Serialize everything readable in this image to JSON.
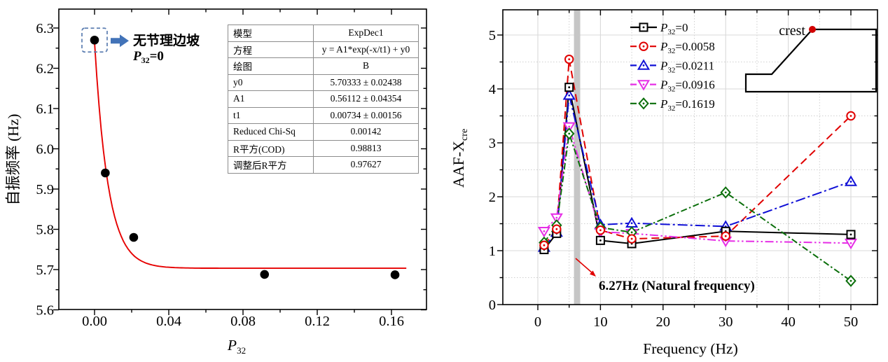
{
  "chart_data": [
    {
      "type": "scatter",
      "title": "",
      "ylabel": "自振频率 (Hz)",
      "xlabel": {
        "base": "P",
        "sub": "32"
      },
      "xlim": [
        -0.0192,
        0.1789
      ],
      "ylim": [
        5.6,
        6.347
      ],
      "x_major_ticks": [
        0.0,
        0.04,
        0.08,
        0.12,
        0.16
      ],
      "x_minor_ticks": [
        0.02,
        0.06,
        0.1,
        0.14
      ],
      "y_major_ticks": [
        5.6,
        5.7,
        5.8,
        5.9,
        6.0,
        6.1,
        6.2,
        6.3
      ],
      "y_minor_ticks": [
        5.65,
        5.75,
        5.85,
        5.95,
        6.05,
        6.15,
        6.25
      ],
      "grid": false,
      "points": [
        [
          0.0,
          6.27
        ],
        [
          0.0058,
          5.94
        ],
        [
          0.0211,
          5.78
        ],
        [
          0.0916,
          5.688
        ],
        [
          0.1619,
          5.687
        ]
      ],
      "point_color": "#000000",
      "fit": {
        "model": "ExpDec1",
        "equation": "y = A1*exp(-x/t1) + y0",
        "y0": 5.70333,
        "A1": 0.56112,
        "t1": 0.00734,
        "x_start": 0.0,
        "x_end": 0.1685,
        "color": "#e60000"
      },
      "annotation": {
        "line1": "无节理边坡",
        "line2": {
          "base": "P",
          "sub": "32",
          "rest": "=0"
        },
        "box_color": "#5b7db1",
        "arrow_color": "#4273b8"
      },
      "param_table": {
        "rows": [
          [
            "模型",
            "ExpDec1"
          ],
          [
            "方程",
            "y = A1*exp(-x/t1) + y0"
          ],
          [
            "绘图",
            "B"
          ],
          [
            "y0",
            "5.70333 ± 0.02438"
          ],
          [
            "A1",
            "0.56112 ± 0.04354"
          ],
          [
            "t1",
            "0.00734 ± 0.00156"
          ],
          [
            "Reduced Chi-Sq",
            "0.00142"
          ],
          [
            "R平方(COD)",
            "0.98813"
          ],
          [
            "调整后R平方",
            "0.97627"
          ]
        ]
      }
    },
    {
      "type": "line",
      "title": "",
      "xlabel": "Frequency (Hz)",
      "ylabel": {
        "base": "AAF-X",
        "sub": "cre"
      },
      "xlim": [
        -5.6,
        54.3
      ],
      "ylim": [
        0,
        5.47
      ],
      "x_major_ticks": [
        0,
        10,
        20,
        30,
        40,
        50
      ],
      "x_minor_ticks": [
        5,
        15,
        25,
        35,
        45
      ],
      "y_major_ticks": [
        0,
        1,
        2,
        3,
        4,
        5
      ],
      "y_minor_ticks": [
        0.5,
        1.5,
        2.5,
        3.5,
        4.5
      ],
      "grid": {
        "major": "solid",
        "minor": "dotted"
      },
      "x": [
        1,
        3,
        5,
        10,
        15,
        30,
        50
      ],
      "series": [
        {
          "label": {
            "base": "P",
            "sub": "32",
            "rest": "=0"
          },
          "color": "#000000",
          "marker": "square",
          "line": "solid",
          "values": [
            1.02,
            1.32,
            4.03,
            1.19,
            1.13,
            1.36,
            1.3
          ]
        },
        {
          "label": {
            "base": "P",
            "sub": "32",
            "rest": "=0.0058"
          },
          "color": "#e00000",
          "marker": "circle",
          "line": "dashed",
          "values": [
            1.1,
            1.4,
            4.55,
            1.38,
            1.22,
            1.27,
            3.5
          ]
        },
        {
          "label": {
            "base": "P",
            "sub": "32",
            "rest": "=0.0211"
          },
          "color": "#1010d6",
          "marker": "triangle-up",
          "line": "dash-dot",
          "values": [
            1.06,
            1.34,
            3.88,
            1.48,
            1.51,
            1.45,
            2.28
          ]
        },
        {
          "label": {
            "base": "P",
            "sub": "32",
            "rest": "=0.0916"
          },
          "color": "#e62ee6",
          "marker": "triangle-down",
          "line": "dash-dot-dot",
          "values": [
            1.36,
            1.61,
            3.3,
            1.35,
            1.32,
            1.18,
            1.14
          ]
        },
        {
          "label": {
            "base": "P",
            "sub": "32",
            "rest": "=0.1619"
          },
          "color": "#0a6e0a",
          "marker": "diamond",
          "line": "short-dash-dot",
          "values": [
            1.15,
            1.47,
            3.17,
            1.43,
            1.34,
            2.08,
            0.44
          ]
        }
      ],
      "band": {
        "center": 6.27,
        "width": 1.0,
        "color": "#c6c6c6"
      },
      "annotation": {
        "text": "6.27Hz (Natural frequency)",
        "color": "#e10000"
      },
      "inset": {
        "label": "crest",
        "dot_color": "#d10000"
      },
      "legend_position": "top-center"
    }
  ]
}
